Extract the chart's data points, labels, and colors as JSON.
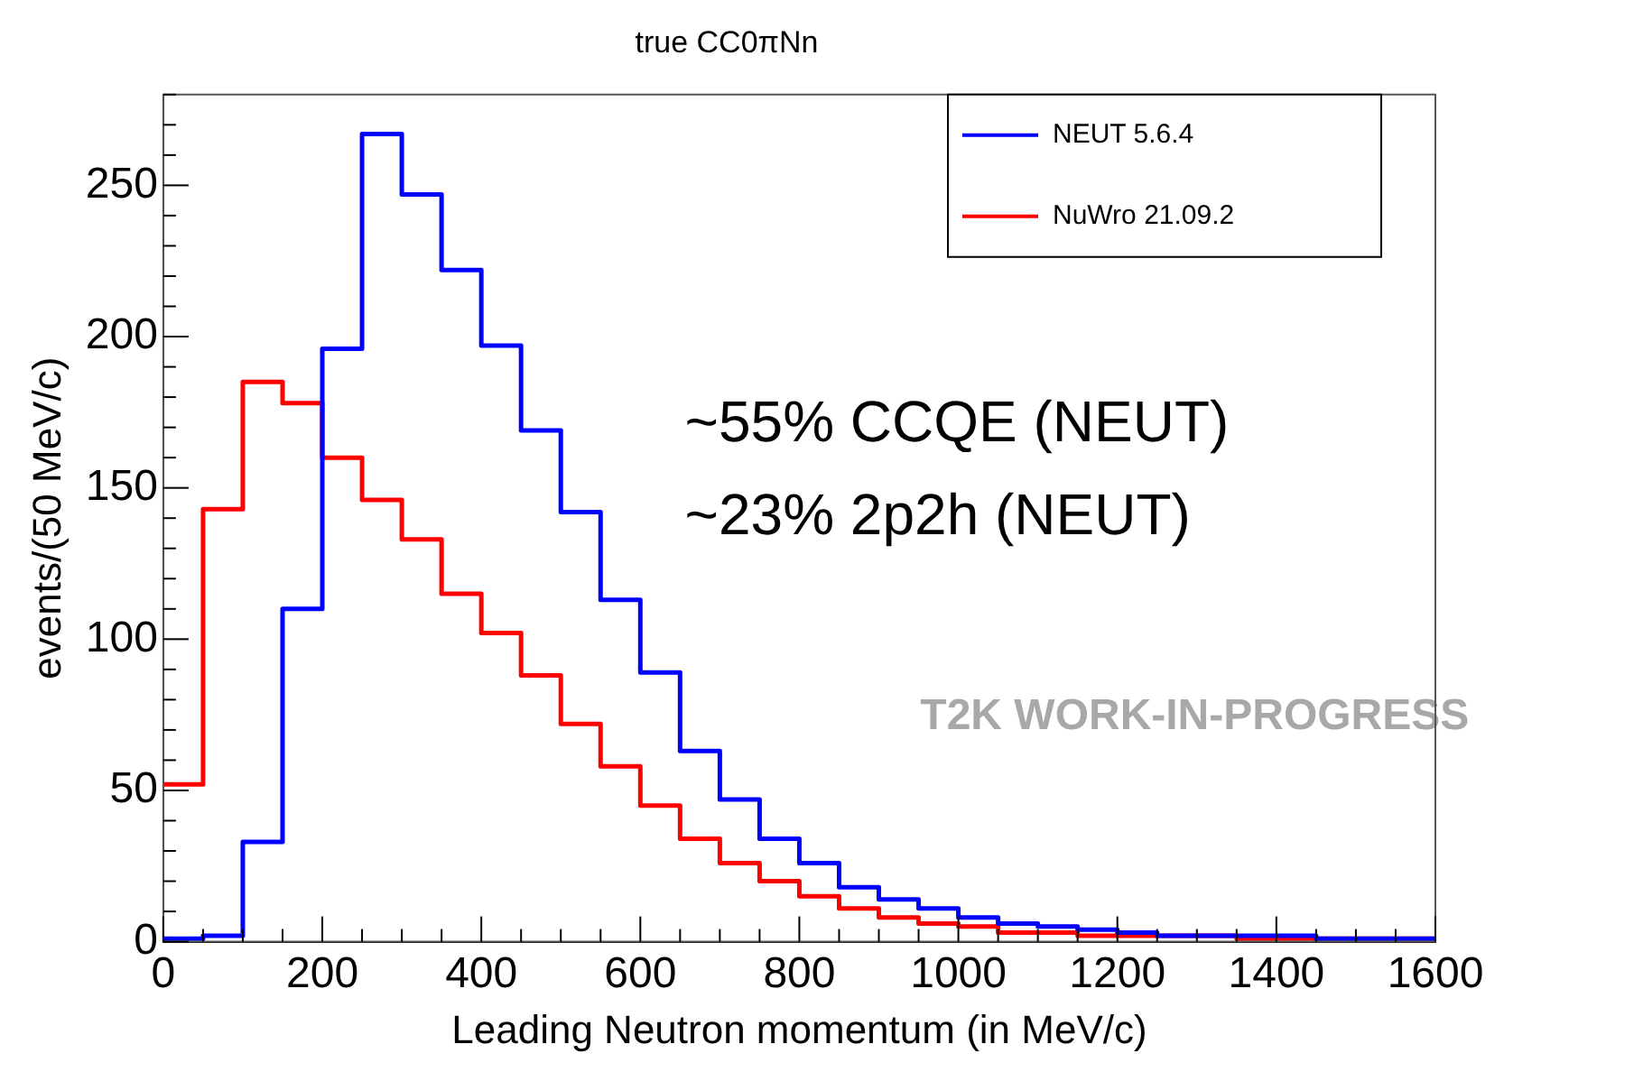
{
  "chart_data": {
    "type": "histogram",
    "title": "true CC0πNn",
    "xlabel": "Leading Neutron momentum (in MeV/c)",
    "ylabel": "events/(50 MeV/c)",
    "bins": [
      0,
      50,
      100,
      150,
      200,
      250,
      300,
      350,
      400,
      450,
      500,
      550,
      600,
      650,
      700,
      750,
      800,
      850,
      900,
      950,
      1000,
      1050,
      1100,
      1150,
      1200,
      1250,
      1300,
      1350,
      1400,
      1450,
      1500,
      1550,
      1600
    ],
    "series": [
      {
        "name": "NEUT 5.6.4",
        "color": "#0000ff",
        "values": [
          1,
          2,
          33,
          110,
          196,
          267,
          247,
          222,
          197,
          169,
          142,
          113,
          89,
          63,
          47,
          34,
          26,
          18,
          14,
          11,
          8,
          6,
          5,
          4,
          3,
          2,
          2,
          2,
          2,
          1,
          1,
          1
        ]
      },
      {
        "name": "NuWro 21.09.2",
        "color": "#ff0000",
        "values": [
          52,
          143,
          185,
          178,
          160,
          146,
          133,
          115,
          102,
          88,
          72,
          58,
          45,
          34,
          26,
          20,
          15,
          11,
          8,
          6,
          5,
          3,
          3,
          2,
          2,
          2,
          2,
          1,
          1,
          1,
          1,
          1
        ]
      }
    ],
    "xlim": [
      0,
      1600
    ],
    "xticks": [
      0,
      {
        "value": 50,
        "label": null
      },
      {
        "value": 100,
        "label": null
      },
      {
        "value": 150,
        "label": null
      },
      200,
      {
        "value": 250,
        "label": null
      },
      {
        "value": 300,
        "label": null
      },
      {
        "value": 350,
        "label": null
      },
      400,
      {
        "value": 450,
        "label": null
      },
      {
        "value": 500,
        "label": null
      },
      {
        "value": 550,
        "label": null
      },
      600,
      {
        "value": 650,
        "label": null
      },
      {
        "value": 700,
        "label": null
      },
      {
        "value": 750,
        "label": null
      },
      800,
      {
        "value": 850,
        "label": null
      },
      {
        "value": 900,
        "label": null
      },
      {
        "value": 950,
        "label": null
      },
      1000,
      {
        "value": 1050,
        "label": null
      },
      {
        "value": 1100,
        "label": null
      },
      {
        "value": 1150,
        "label": null
      },
      1200,
      {
        "value": 1250,
        "label": null
      },
      {
        "value": 1300,
        "label": null
      },
      {
        "value": 1350,
        "label": null
      },
      1400,
      {
        "value": 1450,
        "label": null
      },
      {
        "value": 1500,
        "label": null
      },
      {
        "value": 1550,
        "label": null
      },
      1600
    ],
    "ylim": [
      0,
      280
    ],
    "yticks": [
      0,
      {
        "value": 10,
        "label": null
      },
      {
        "value": 20,
        "label": null
      },
      {
        "value": 30,
        "label": null
      },
      {
        "value": 40,
        "label": null
      },
      50,
      {
        "value": 60,
        "label": null
      },
      {
        "value": 70,
        "label": null
      },
      {
        "value": 80,
        "label": null
      },
      {
        "value": 90,
        "label": null
      },
      100,
      {
        "value": 110,
        "label": null
      },
      {
        "value": 120,
        "label": null
      },
      {
        "value": 130,
        "label": null
      },
      {
        "value": 140,
        "label": null
      },
      150,
      {
        "value": 160,
        "label": null
      },
      {
        "value": 170,
        "label": null
      },
      {
        "value": 180,
        "label": null
      },
      {
        "value": 190,
        "label": null
      },
      200,
      {
        "value": 210,
        "label": null
      },
      {
        "value": 220,
        "label": null
      },
      {
        "value": 230,
        "label": null
      },
      {
        "value": 240,
        "label": null
      },
      250,
      {
        "value": 260,
        "label": null
      },
      {
        "value": 270,
        "label": null
      },
      {
        "value": 280,
        "label": null
      }
    ],
    "legend": "top right",
    "grid": false,
    "annotations": [
      "~55% CCQE (NEUT)",
      "~23% 2p2h (NEUT)",
      "T2K WORK-IN-PROGRESS"
    ]
  }
}
